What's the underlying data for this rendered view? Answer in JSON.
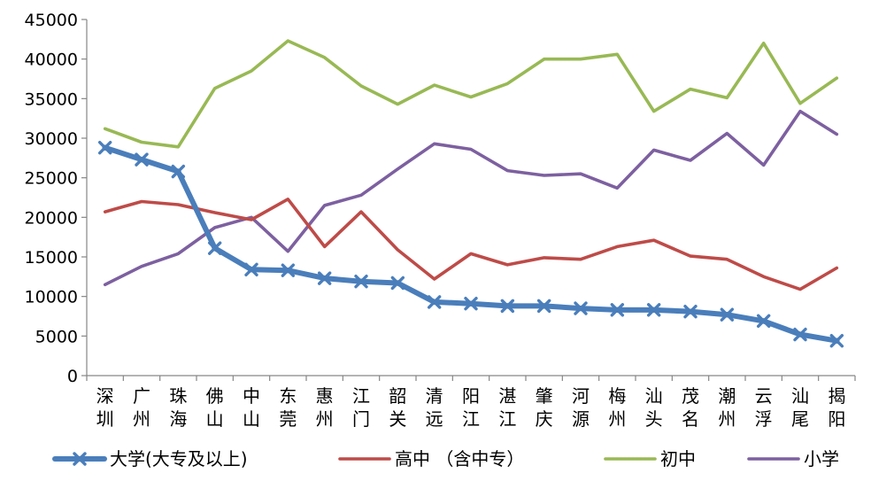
{
  "chart_data": {
    "type": "line",
    "title": "",
    "xlabel": "",
    "ylabel": "",
    "ylim": [
      0,
      45000
    ],
    "yticks": [
      0,
      5000,
      10000,
      15000,
      20000,
      25000,
      30000,
      35000,
      40000,
      45000
    ],
    "grid": false,
    "legend_position": "bottom",
    "categories": [
      "深圳",
      "广州",
      "珠海",
      "佛山",
      "中山",
      "东莞",
      "惠州",
      "江门",
      "韶关",
      "清远",
      "阳江",
      "湛江",
      "肇庆",
      "河源",
      "梅州",
      "汕头",
      "茂名",
      "潮州",
      "云浮",
      "汕尾",
      "揭阳"
    ],
    "series": [
      {
        "name": "大学(大专及以上)",
        "color": "#4a7ebb",
        "marker": "x",
        "values": [
          28800,
          27300,
          25800,
          16100,
          13400,
          13300,
          12300,
          11900,
          11700,
          9300,
          9100,
          8800,
          8800,
          8500,
          8300,
          8300,
          8100,
          7700,
          6900,
          5200,
          4400
        ]
      },
      {
        "name": "高中 （含中专）",
        "color": "#be4b48",
        "marker": "none",
        "values": [
          20700,
          22000,
          21600,
          20600,
          19700,
          22300,
          16300,
          20700,
          15900,
          12200,
          15400,
          14000,
          14900,
          14700,
          16300,
          17100,
          15100,
          14700,
          12500,
          10900,
          13600
        ]
      },
      {
        "name": "初中",
        "color": "#98b954",
        "marker": "none",
        "values": [
          31200,
          29500,
          28900,
          36300,
          38500,
          42300,
          40200,
          36600,
          34300,
          36700,
          35200,
          36900,
          40000,
          40000,
          40600,
          33400,
          36200,
          35100,
          42000,
          34400,
          37600
        ]
      },
      {
        "name": "小学",
        "color": "#7d60a0",
        "marker": "none",
        "values": [
          11500,
          13800,
          15400,
          18700,
          20000,
          15700,
          21500,
          22800,
          26100,
          29300,
          28600,
          25900,
          25300,
          25500,
          23700,
          28500,
          27200,
          30600,
          26600,
          33400,
          30500
        ]
      }
    ]
  }
}
